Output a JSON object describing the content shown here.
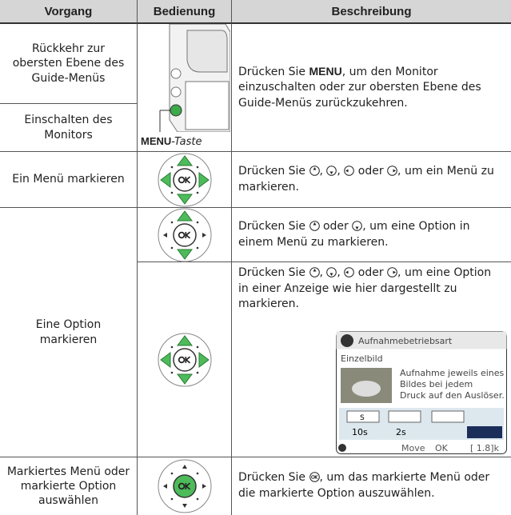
{
  "header": {
    "col1": "Vorgang",
    "col2": "Bedienung",
    "col3": "Beschreibung"
  },
  "rows": [
    {
      "actions": [
        "Rückkehr zur obersten Ebene des Guide-Menüs",
        "Einschalten des Monitors"
      ],
      "control_label": {
        "key": "MENU",
        "suffix": "-Taste"
      },
      "description": [
        "Drücken Sie ",
        "MENU",
        ", um den Monitor einzuschalten oder zur obersten Ebene des Guide-Menüs zurückzukehren."
      ]
    },
    {
      "action": "Ein Menü markieren",
      "description": [
        "Drücken Sie ",
        ", ",
        ", ",
        " oder ",
        ", um ein Menü zu markieren."
      ]
    },
    {
      "action": "Eine Option markieren",
      "steps": [
        {
          "description": [
            "Drücken Sie ",
            " oder ",
            ", um eine Option in einem Menü zu markieren."
          ]
        },
        {
          "description": [
            "Drücken Sie ",
            ", ",
            ", ",
            " oder ",
            ", um eine Option in einer Anzeige wie hier dargestellt zu markieren."
          ],
          "screen": {
            "title": "Aufnahmebetriebsart",
            "mode": "Einzelbild",
            "text": [
              "Aufnahme jeweils eines",
              "Bildes bei jedem",
              "Druck auf den Auslöser."
            ],
            "options": [
              "S",
              "10s",
              "2s"
            ],
            "footer": [
              "Move",
              "OK",
              "[ 1.8]k"
            ]
          }
        }
      ]
    },
    {
      "action": "Markiertes Menü oder markierte Option auswählen",
      "description": [
        "Drücken Sie ",
        ", um das markierte Menü oder die markierte Option auszuwählen."
      ]
    }
  ]
}
